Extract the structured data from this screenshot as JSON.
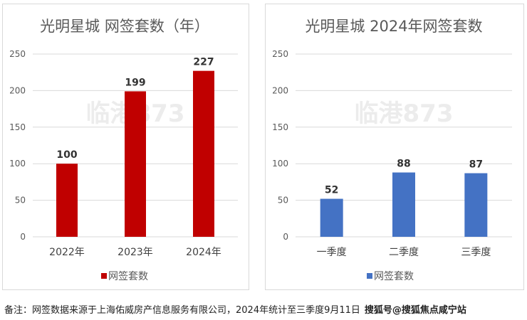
{
  "chart_data": [
    {
      "type": "bar",
      "title": "光明星城 网签套数（年）",
      "categories": [
        "2022年",
        "2023年",
        "2024年"
      ],
      "series": [
        {
          "name": "网签套数",
          "values": [
            100,
            199,
            227
          ]
        }
      ],
      "data_labels": [
        "100",
        "199",
        "227"
      ],
      "yticks": [
        "0",
        "50",
        "100",
        "150",
        "200",
        "250"
      ],
      "ylim": [
        0,
        250
      ],
      "grid": true,
      "legend": "bottom",
      "color": "#c00000",
      "watermark": "临港873"
    },
    {
      "type": "bar",
      "title": "光明星城 2024年网签套数",
      "categories": [
        "一季度",
        "二季度",
        "三季度"
      ],
      "series": [
        {
          "name": "网签套数",
          "values": [
            52,
            88,
            87
          ]
        }
      ],
      "data_labels": [
        "52",
        "88",
        "87"
      ],
      "yticks": [
        "0",
        "50",
        "100",
        "150",
        "200",
        "250"
      ],
      "ylim": [
        0,
        250
      ],
      "grid": true,
      "legend": "bottom",
      "color": "#4472c4",
      "watermark": "临港873"
    }
  ],
  "footnote": {
    "text": "备注：网签数据来源于上海佑威房产信息服务有限公司，2024年统计至三季度9月11日",
    "source": "搜狐号@搜狐焦点咸宁站"
  }
}
